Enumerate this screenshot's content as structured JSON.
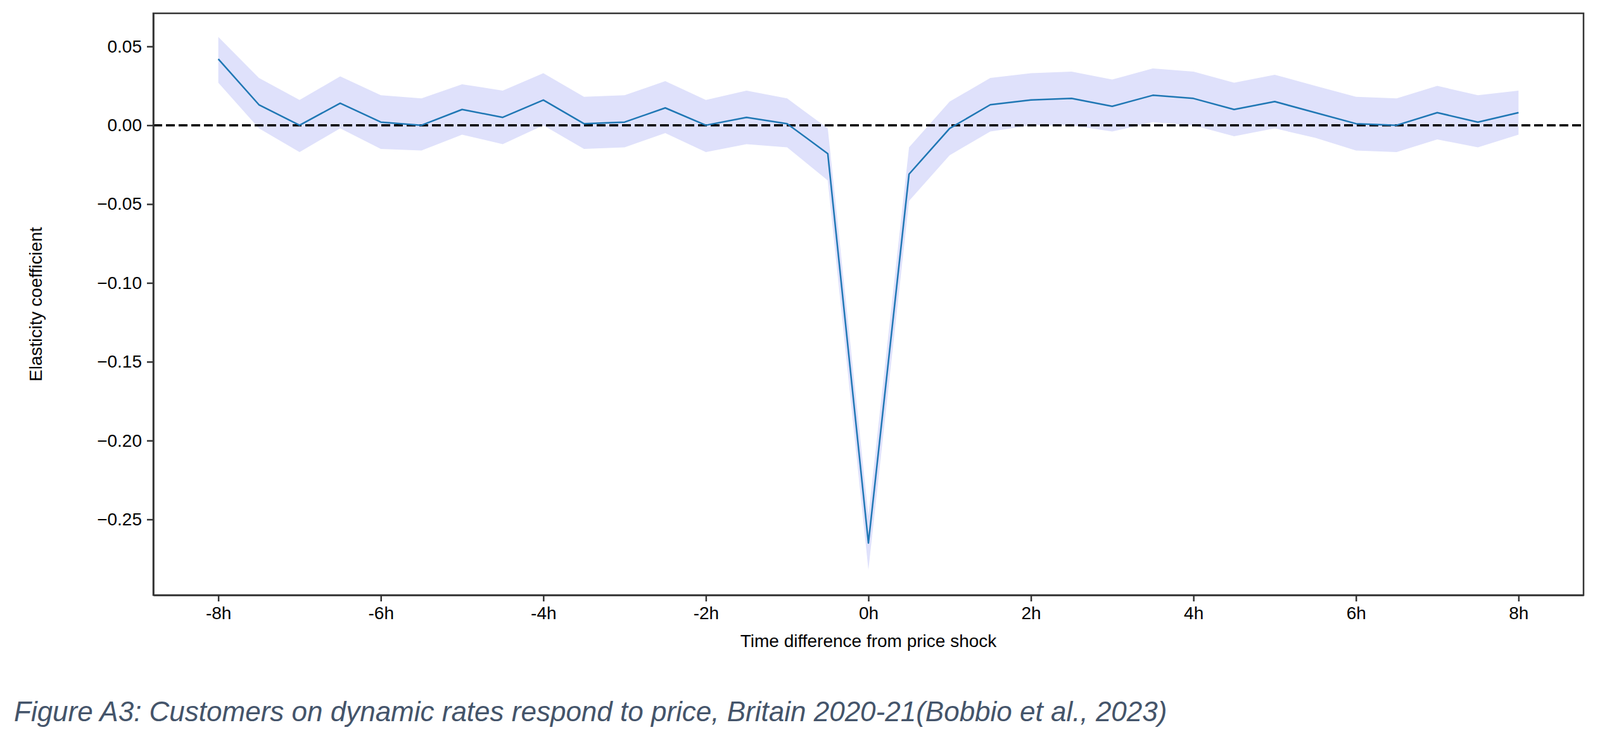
{
  "chart_data": {
    "type": "line",
    "x_label": "Time difference from price shock",
    "y_label": "Elasticity coefficient",
    "caption": "Figure A3: Customers on dynamic rates respond to price, Britain 2020-21(Bobbio et al., 2023)",
    "x": [
      -8,
      -7.5,
      -7,
      -6.5,
      -6,
      -5.5,
      -5,
      -4.5,
      -4,
      -3.5,
      -3,
      -2.5,
      -2,
      -1.5,
      -1,
      -0.5,
      0,
      0.5,
      1,
      1.5,
      2,
      2.5,
      3,
      3.5,
      4,
      4.5,
      5,
      5.5,
      6,
      6.5,
      7,
      7.5,
      8
    ],
    "series": [
      {
        "color": "#1f77b4",
        "values": [
          0.042,
          0.013,
          0.0,
          0.014,
          0.002,
          0.0,
          0.01,
          0.005,
          0.016,
          0.001,
          0.002,
          0.011,
          0.0,
          0.005,
          0.001,
          -0.018,
          -0.265,
          -0.031,
          -0.002,
          0.013,
          0.016,
          0.017,
          0.012,
          0.019,
          0.017,
          0.01,
          0.015,
          0.008,
          0.001,
          0.0,
          0.008,
          0.002,
          0.008
        ],
        "ci_lower": [
          0.027,
          -0.002,
          -0.017,
          -0.002,
          -0.015,
          -0.016,
          -0.006,
          -0.012,
          0.0,
          -0.015,
          -0.014,
          -0.005,
          -0.017,
          -0.012,
          -0.014,
          -0.035,
          -0.282,
          -0.048,
          -0.019,
          -0.004,
          0.0,
          0.0,
          -0.004,
          0.002,
          0.0,
          -0.007,
          -0.002,
          -0.008,
          -0.016,
          -0.017,
          -0.009,
          -0.014,
          -0.006
        ],
        "ci_upper": [
          0.056,
          0.03,
          0.016,
          0.031,
          0.019,
          0.017,
          0.026,
          0.022,
          0.033,
          0.018,
          0.019,
          0.028,
          0.016,
          0.022,
          0.017,
          -0.002,
          -0.248,
          -0.014,
          0.015,
          0.03,
          0.033,
          0.034,
          0.029,
          0.036,
          0.034,
          0.027,
          0.032,
          0.025,
          0.018,
          0.017,
          0.025,
          0.019,
          0.022
        ]
      }
    ],
    "reference_line": 0,
    "xlim": [
      -8.8,
      8.8
    ],
    "ylim": [
      -0.298,
      0.071
    ],
    "xticks": [
      {
        "value": -8,
        "label": "-8h"
      },
      {
        "value": -6,
        "label": "-6h"
      },
      {
        "value": -4,
        "label": "-4h"
      },
      {
        "value": -2,
        "label": "-2h"
      },
      {
        "value": 0,
        "label": "0h"
      },
      {
        "value": 2,
        "label": "2h"
      },
      {
        "value": 4,
        "label": "4h"
      },
      {
        "value": 6,
        "label": "6h"
      },
      {
        "value": 8,
        "label": "8h"
      }
    ],
    "yticks": [
      0.05,
      {
        "value": 0,
        "label": "0.00"
      },
      {
        "value": -0.05,
        "label": "−0.05"
      },
      {
        "value": -0.1,
        "label": "−0.10"
      },
      {
        "value": -0.15,
        "label": "−0.15"
      },
      {
        "value": -0.2,
        "label": "−0.20"
      },
      {
        "value": -0.25,
        "label": "−0.25"
      }
    ],
    "grid": false
  }
}
